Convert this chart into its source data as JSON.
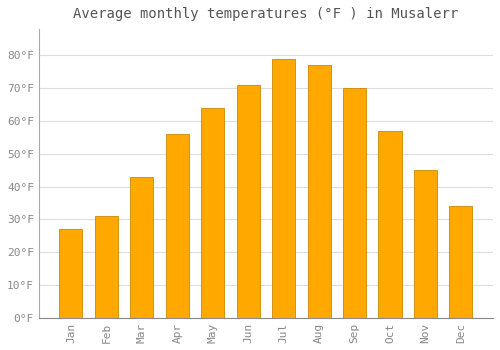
{
  "title": "Average monthly temperatures (°F ) in Musalerr",
  "months": [
    "Jan",
    "Feb",
    "Mar",
    "Apr",
    "May",
    "Jun",
    "Jul",
    "Aug",
    "Sep",
    "Oct",
    "Nov",
    "Dec"
  ],
  "values": [
    27,
    31,
    43,
    56,
    64,
    71,
    79,
    77,
    70,
    57,
    45,
    34
  ],
  "bar_color": "#FFA800",
  "bar_edge_color": "#CC8800",
  "background_color": "#FFFFFF",
  "grid_color": "#DDDDDD",
  "ylim": [
    0,
    88
  ],
  "yticks": [
    0,
    10,
    20,
    30,
    40,
    50,
    60,
    70,
    80
  ],
  "ytick_labels": [
    "0°F",
    "10°F",
    "20°F",
    "30°F",
    "40°F",
    "50°F",
    "60°F",
    "70°F",
    "80°F"
  ],
  "title_fontsize": 10,
  "tick_fontsize": 8,
  "font_family": "monospace",
  "title_color": "#555555",
  "tick_color": "#888888"
}
